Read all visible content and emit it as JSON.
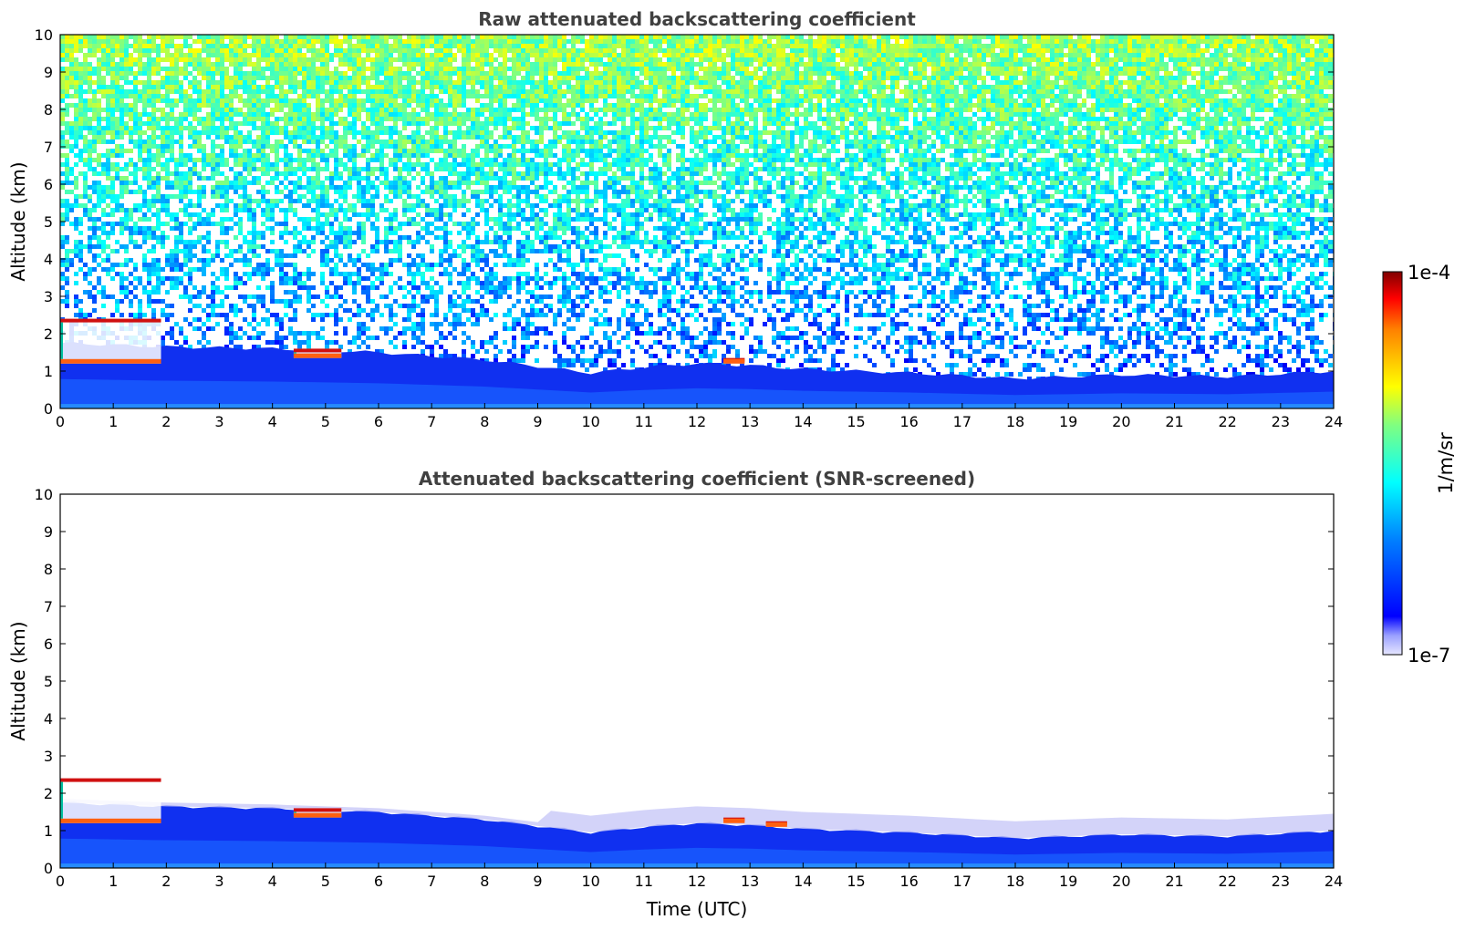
{
  "chart_data": [
    {
      "type": "heatmap",
      "title": "Raw attenuated backscattering coefficient",
      "xlabel": "",
      "ylabel": "Altitude (km)",
      "xlim": [
        0,
        24
      ],
      "ylim": [
        0,
        10
      ],
      "xticks": [
        0,
        1,
        2,
        3,
        4,
        5,
        6,
        7,
        8,
        9,
        10,
        11,
        12,
        13,
        14,
        15,
        16,
        17,
        18,
        19,
        20,
        21,
        22,
        23,
        24
      ],
      "yticks": [
        0,
        1,
        2,
        3,
        4,
        5,
        6,
        7,
        8,
        9,
        10
      ],
      "layer_top_km": {
        "time_utc": [
          0,
          2,
          4,
          6,
          8,
          10,
          11,
          12,
          13,
          14,
          16,
          18,
          20,
          22,
          24
        ],
        "altitude_km": [
          1.75,
          1.65,
          1.6,
          1.5,
          1.3,
          0.95,
          1.1,
          1.2,
          1.15,
          1.05,
          0.95,
          0.8,
          0.9,
          0.85,
          1.0
        ]
      },
      "clouds": [
        {
          "time_utc": [
            0.0,
            1.9
          ],
          "altitude_km": [
            1.2,
            2.4
          ]
        },
        {
          "time_utc": [
            4.4,
            5.3
          ],
          "altitude_km": [
            1.35,
            1.6
          ]
        },
        {
          "time_utc": [
            12.5,
            12.9
          ],
          "altitude_km": [
            1.2,
            1.35
          ]
        }
      ],
      "noise": "strong (low SNR) above the boundary layer, increasing with altitude"
    },
    {
      "type": "heatmap",
      "title": "Attenuated backscattering coefficient (SNR-screened)",
      "xlabel": "Time (UTC)",
      "ylabel": "Altitude (km)",
      "xlim": [
        0,
        24
      ],
      "ylim": [
        0,
        10
      ],
      "xticks": [
        0,
        1,
        2,
        3,
        4,
        5,
        6,
        7,
        8,
        9,
        10,
        11,
        12,
        13,
        14,
        15,
        16,
        17,
        18,
        19,
        20,
        21,
        22,
        23,
        24
      ],
      "yticks": [
        0,
        1,
        2,
        3,
        4,
        5,
        6,
        7,
        8,
        9,
        10
      ],
      "layer_top_km": {
        "time_utc": [
          0,
          2,
          4,
          6,
          8,
          10,
          11,
          12,
          13,
          14,
          16,
          18,
          20,
          22,
          24
        ],
        "altitude_km": [
          1.75,
          1.65,
          1.6,
          1.5,
          1.3,
          0.95,
          1.1,
          1.2,
          1.15,
          1.05,
          0.95,
          0.8,
          0.9,
          0.85,
          1.0
        ]
      },
      "clouds": [
        {
          "time_utc": [
            0.0,
            1.9
          ],
          "altitude_km": [
            1.2,
            2.4
          ]
        },
        {
          "time_utc": [
            4.4,
            5.3
          ],
          "altitude_km": [
            1.35,
            1.6
          ]
        },
        {
          "time_utc": [
            12.5,
            12.9
          ],
          "altitude_km": [
            1.2,
            1.35
          ]
        },
        {
          "time_utc": [
            13.3,
            13.7
          ],
          "altitude_km": [
            1.1,
            1.25
          ]
        }
      ],
      "noise": "screened out (white) where SNR is low"
    }
  ],
  "colorbar": {
    "label": "1/m/sr",
    "min_label": "1e-7",
    "max_label": "1e-4",
    "colormap": "jet"
  }
}
